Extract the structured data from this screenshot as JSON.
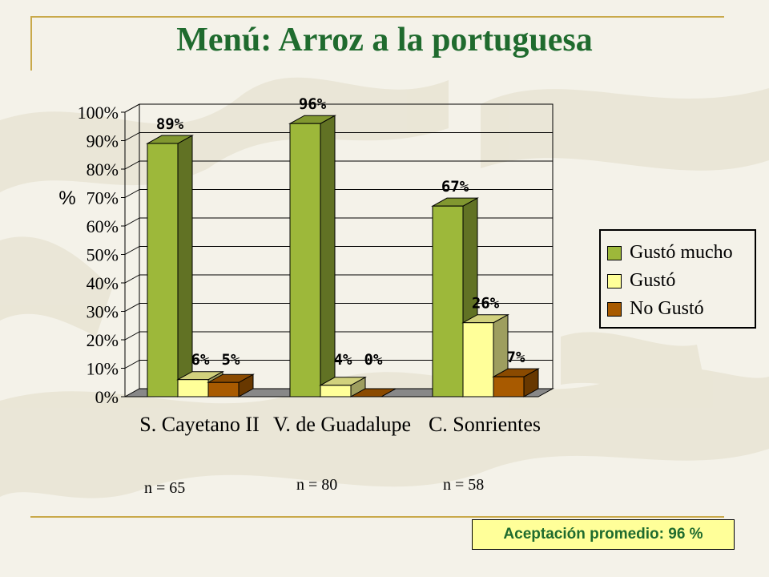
{
  "slide": {
    "title": "Menú: Arroz a la portuguesa",
    "sample_sizes": [
      "n = 65",
      "n = 80",
      "n = 58"
    ],
    "acceptance": "Aceptación promedio: 96 %"
  },
  "colors": {
    "background": "#f4f2e9",
    "title": "#1f6b2e",
    "rule": "#c9a94a",
    "acceptance_box": "#ffff99"
  },
  "chart_data": {
    "type": "bar",
    "ylabel": "%",
    "ylim": [
      0,
      100
    ],
    "yticks": [
      "0%",
      "10%",
      "20%",
      "30%",
      "40%",
      "50%",
      "60%",
      "70%",
      "80%",
      "90%",
      "100%"
    ],
    "grid": true,
    "legend_position": "right",
    "categories": [
      "S. Cayetano II",
      "V. de Guadalupe",
      "C. Sonrientes"
    ],
    "series": [
      {
        "name": "Gustó mucho",
        "values": [
          89,
          96,
          67
        ],
        "labels": [
          "89%",
          "96%",
          "67%"
        ],
        "color": "#9db83a"
      },
      {
        "name": "Gustó",
        "values": [
          6,
          4,
          26
        ],
        "labels": [
          "6%",
          "4%",
          "26%"
        ],
        "color": "#ffff99"
      },
      {
        "name": "No Gustó",
        "values": [
          5,
          0,
          7
        ],
        "labels": [
          "5%",
          "0%",
          "7%"
        ],
        "color": "#a85a00"
      }
    ]
  }
}
